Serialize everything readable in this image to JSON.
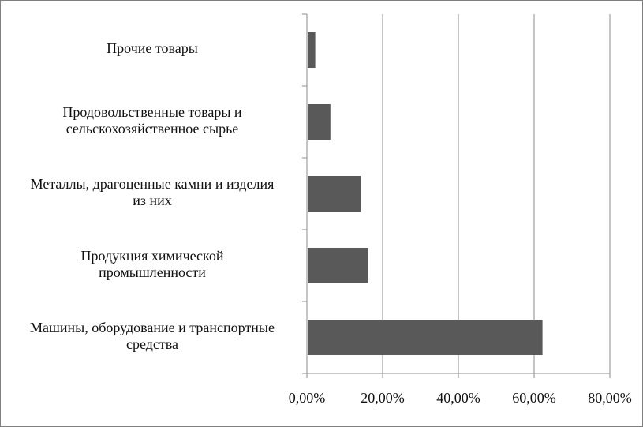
{
  "chart_data": {
    "type": "bar",
    "orientation": "horizontal",
    "categories": [
      "Машины, оборудование и транспортные\nсредства",
      "Продукция химической\nпромышленности",
      "Металлы, драгоценные камни и изделия\nиз них",
      "Продовольственные товары и\nсельскохозяйственное сырье",
      "Прочие товары"
    ],
    "values": [
      62.0,
      16.0,
      14.0,
      6.0,
      2.0
    ],
    "xlim": [
      0,
      80
    ],
    "xticks": [
      "0,00%",
      "20,00%",
      "40,00%",
      "60,00%",
      "80,00%"
    ],
    "title": "",
    "xlabel": "",
    "ylabel": "",
    "grid": "vertical",
    "bar_color": "#595959",
    "grid_color": "#8c8c8c"
  }
}
